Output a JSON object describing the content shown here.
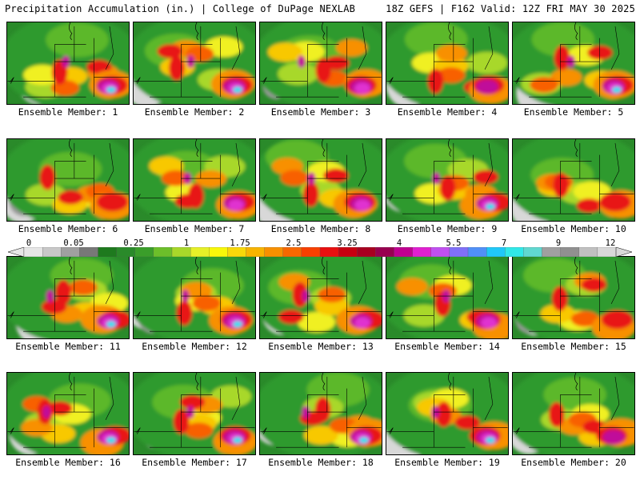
{
  "header": {
    "title": "Precipitation Accumulation (in.) | College of DuPage NEXLAB",
    "run_info": "18Z GEFS | F162 Valid: 12Z FRI MAY 30 2025"
  },
  "caption_prefix": "Ensemble Member: ",
  "members": [
    {
      "label": "Ensemble Member: 1",
      "max_band": "7"
    },
    {
      "label": "Ensemble Member: 2",
      "max_band": "7"
    },
    {
      "label": "Ensemble Member: 3",
      "max_band": "5.5"
    },
    {
      "label": "Ensemble Member: 4",
      "max_band": "4"
    },
    {
      "label": "Ensemble Member: 5",
      "max_band": "7"
    },
    {
      "label": "Ensemble Member: 6",
      "max_band": "3.25"
    },
    {
      "label": "Ensemble Member: 7",
      "max_band": "5.5"
    },
    {
      "label": "Ensemble Member: 8",
      "max_band": "5.5"
    },
    {
      "label": "Ensemble Member: 9",
      "max_band": "7"
    },
    {
      "label": "Ensemble Member: 10",
      "max_band": "3.25"
    },
    {
      "label": "Ensemble Member: 11",
      "max_band": "7"
    },
    {
      "label": "Ensemble Member: 12",
      "max_band": "7"
    },
    {
      "label": "Ensemble Member: 13",
      "max_band": "5.5"
    },
    {
      "label": "Ensemble Member: 14",
      "max_band": "5.5"
    },
    {
      "label": "Ensemble Member: 15",
      "max_band": "3.25"
    },
    {
      "label": "Ensemble Member: 16",
      "max_band": "7"
    },
    {
      "label": "Ensemble Member: 17",
      "max_band": "7"
    },
    {
      "label": "Ensemble Member: 18",
      "max_band": "7"
    },
    {
      "label": "Ensemble Member: 19",
      "max_band": "7"
    },
    {
      "label": "Ensemble Member: 20",
      "max_band": "4"
    }
  ],
  "colorbar": {
    "labels": [
      "0",
      "0.05",
      "0.25",
      "1",
      "1.75",
      "2.5",
      "3.25",
      "4",
      "5.5",
      "7",
      "9",
      "12"
    ],
    "colors": [
      "#e6e6e6",
      "#c8c8c8",
      "#a0a0a0",
      "#787878",
      "#1e7a1e",
      "#2a8a2a",
      "#3a9e2a",
      "#6cbf2a",
      "#a8d82a",
      "#e6f028",
      "#f8f80a",
      "#f8d80a",
      "#f8b400",
      "#f89000",
      "#f86800",
      "#f84000",
      "#e81010",
      "#c80010",
      "#a80020",
      "#980050",
      "#c00090",
      "#e020d0",
      "#c050f0",
      "#8070f8",
      "#5090f8",
      "#20c8f8",
      "#30e8e8",
      "#60d8d0",
      "#a0a0a0",
      "#909090",
      "#c0c0c0",
      "#d8d8d8"
    ]
  }
}
